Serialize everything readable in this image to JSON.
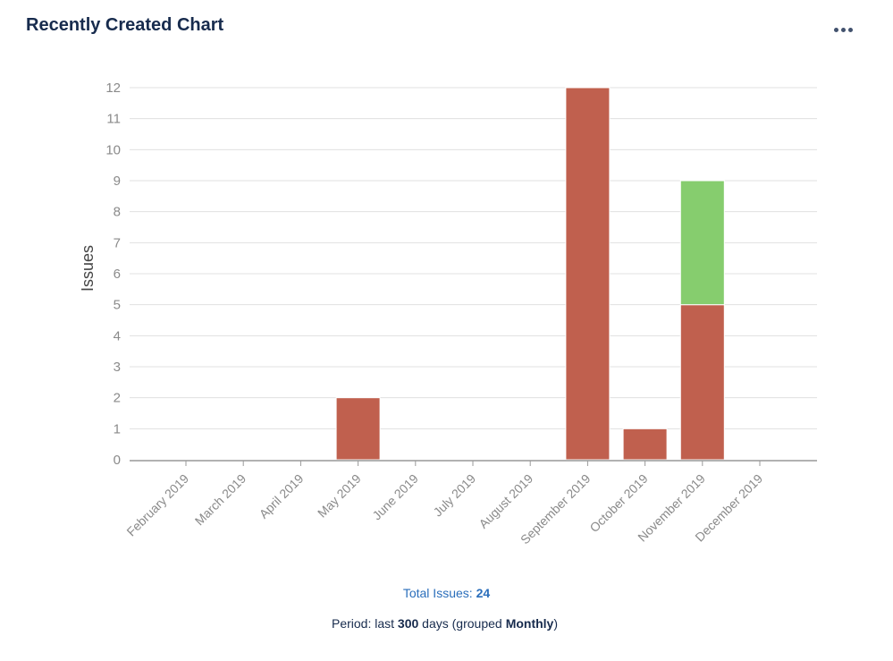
{
  "header": {
    "title": "Recently Created Chart",
    "more_icon": "more-horizontal-icon"
  },
  "footer": {
    "total_label": "Total Issues:",
    "total_value": "24",
    "period_prefix": "Period: last",
    "period_days": "300",
    "period_mid": "days (grouped",
    "period_grouping": "Monthly",
    "period_suffix": ")"
  },
  "colors": {
    "created": "#c0604e",
    "resolved": "#86cd6e",
    "grid": "#e0e0e0",
    "axis": "#999999",
    "tick_text": "#8a8a8a",
    "title": "#172b4d",
    "link": "#2a6ebb"
  },
  "chart_data": {
    "type": "bar",
    "stacked": true,
    "title": "",
    "xlabel": "",
    "ylabel": "Issues",
    "ylim": [
      0,
      12
    ],
    "yticks": [
      0,
      1,
      2,
      3,
      4,
      5,
      6,
      7,
      8,
      9,
      10,
      11,
      12
    ],
    "grid": true,
    "categories": [
      "February 2019",
      "March 2019",
      "April 2019",
      "May 2019",
      "June 2019",
      "July 2019",
      "August 2019",
      "September 2019",
      "October 2019",
      "November 2019",
      "December 2019"
    ],
    "series": [
      {
        "color": "#c0604e",
        "values": [
          0,
          0,
          0,
          2,
          0,
          0,
          0,
          12,
          1,
          5,
          0
        ]
      },
      {
        "color": "#86cd6e",
        "values": [
          0,
          0,
          0,
          0,
          0,
          0,
          0,
          0,
          0,
          4,
          0
        ]
      }
    ]
  }
}
